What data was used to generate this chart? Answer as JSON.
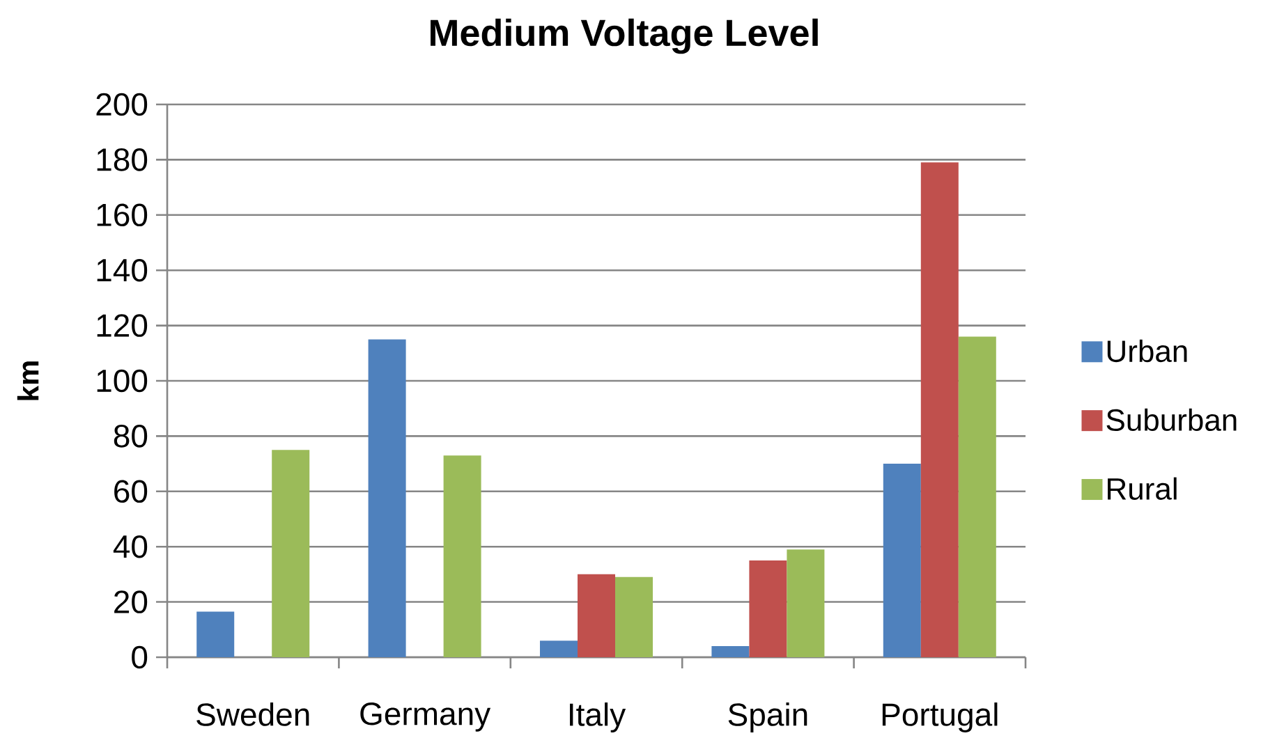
{
  "chart_data": {
    "type": "bar",
    "title": "Medium Voltage Level",
    "ylabel": "km",
    "categories": [
      "Sweden",
      "Germany",
      "Italy",
      "Spain",
      "Portugal"
    ],
    "series": [
      {
        "name": "Urban",
        "color": "#4f81bd",
        "values": [
          16.5,
          115,
          6,
          4,
          70
        ]
      },
      {
        "name": "Suburban",
        "color": "#c0504d",
        "values": [
          null,
          null,
          30,
          35,
          179
        ]
      },
      {
        "name": "Rural",
        "color": "#9bbb59",
        "values": [
          75,
          73,
          29,
          39,
          116
        ]
      }
    ],
    "ylim": [
      0,
      200
    ],
    "yticks": [
      0,
      20,
      40,
      60,
      80,
      100,
      120,
      140,
      160,
      180,
      200
    ],
    "grid": "y",
    "legend": "right"
  }
}
